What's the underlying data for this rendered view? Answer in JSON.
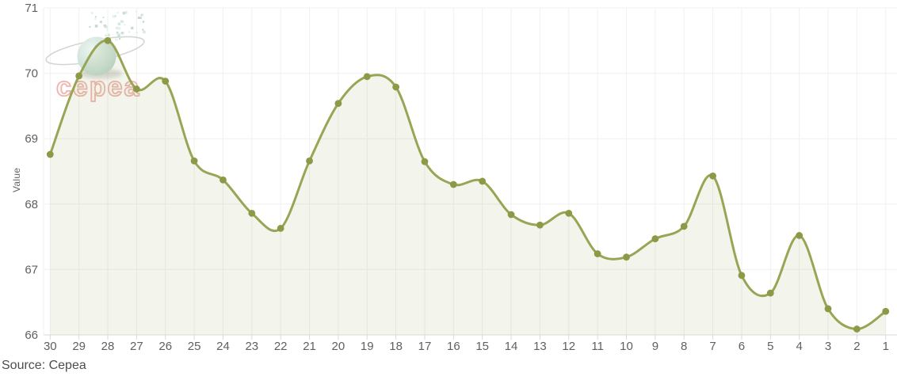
{
  "chart": {
    "source_label": "Source: Cepea",
    "watermark_text": "cepea",
    "colors": {
      "line": "#9aa455",
      "marker": "#8e9947",
      "area_fill": "rgba(150,160,80,0.11)",
      "grid": "#f0f0ef",
      "axis_line": "#d9d9d9",
      "tick_label": "#606060",
      "axis_title": "#666666",
      "source_text": "#4d4d4d",
      "watermark_stroke": "#e7998f",
      "watermark_fill": "rgba(253,241,239,0.45)",
      "globe": "#cde2d8",
      "background": "#ffffff"
    }
  },
  "chart_data": {
    "type": "area",
    "title": "",
    "xlabel": "",
    "ylabel": "Value",
    "categories": [
      30,
      29,
      28,
      27,
      26,
      25,
      24,
      23,
      22,
      21,
      20,
      19,
      18,
      17,
      16,
      15,
      14,
      13,
      12,
      11,
      10,
      9,
      8,
      7,
      6,
      5,
      4,
      3,
      2,
      1
    ],
    "values": [
      68.76,
      69.96,
      70.5,
      69.76,
      69.88,
      68.66,
      68.37,
      67.86,
      67.63,
      68.66,
      69.54,
      69.95,
      69.79,
      68.65,
      68.3,
      68.35,
      67.84,
      67.68,
      67.86,
      67.24,
      67.19,
      67.47,
      67.66,
      68.43,
      66.91,
      66.64,
      67.52,
      66.4,
      66.09,
      66.36
    ],
    "ylim": [
      66,
      71
    ],
    "yticks": [
      66,
      67,
      68,
      69,
      70,
      71
    ],
    "grid": true,
    "legend": false,
    "smooth": true,
    "marker": "circle"
  }
}
